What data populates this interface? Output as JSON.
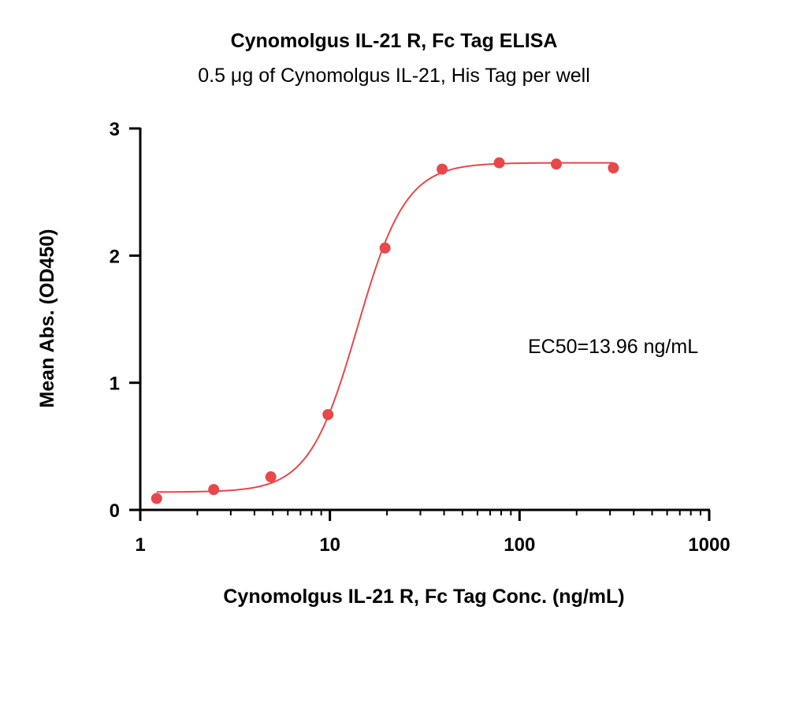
{
  "chart_data": {
    "type": "scatter",
    "title": "Cynomolgus IL-21 R, Fc Tag ELISA",
    "subtitle": "0.5 μg of Cynomolgus IL-21, His Tag per well",
    "xlabel": "Cynomolgus IL-21 R, Fc Tag Conc. (ng/mL)",
    "ylabel": "Mean Abs. (OD450)",
    "xscale": "log",
    "xlim": [
      1,
      1000
    ],
    "ylim": [
      0,
      3
    ],
    "xticks": [
      "1",
      "10",
      "100",
      "1000"
    ],
    "yticks": [
      "0",
      "1",
      "2",
      "3"
    ],
    "grid": false,
    "color": "#e8474b",
    "series": [
      {
        "x": [
          1.22,
          2.44,
          4.88,
          9.77,
          19.53,
          39.06,
          78.13,
          156.25,
          312.5
        ],
        "y": [
          0.09,
          0.16,
          0.26,
          0.75,
          2.06,
          2.68,
          2.73,
          2.72,
          2.69
        ]
      }
    ],
    "fit": {
      "bottom": 0.14,
      "top": 2.73,
      "ec50": 13.96,
      "hill": 3.4
    },
    "annotation": "EC50=13.96 ng/mL"
  }
}
